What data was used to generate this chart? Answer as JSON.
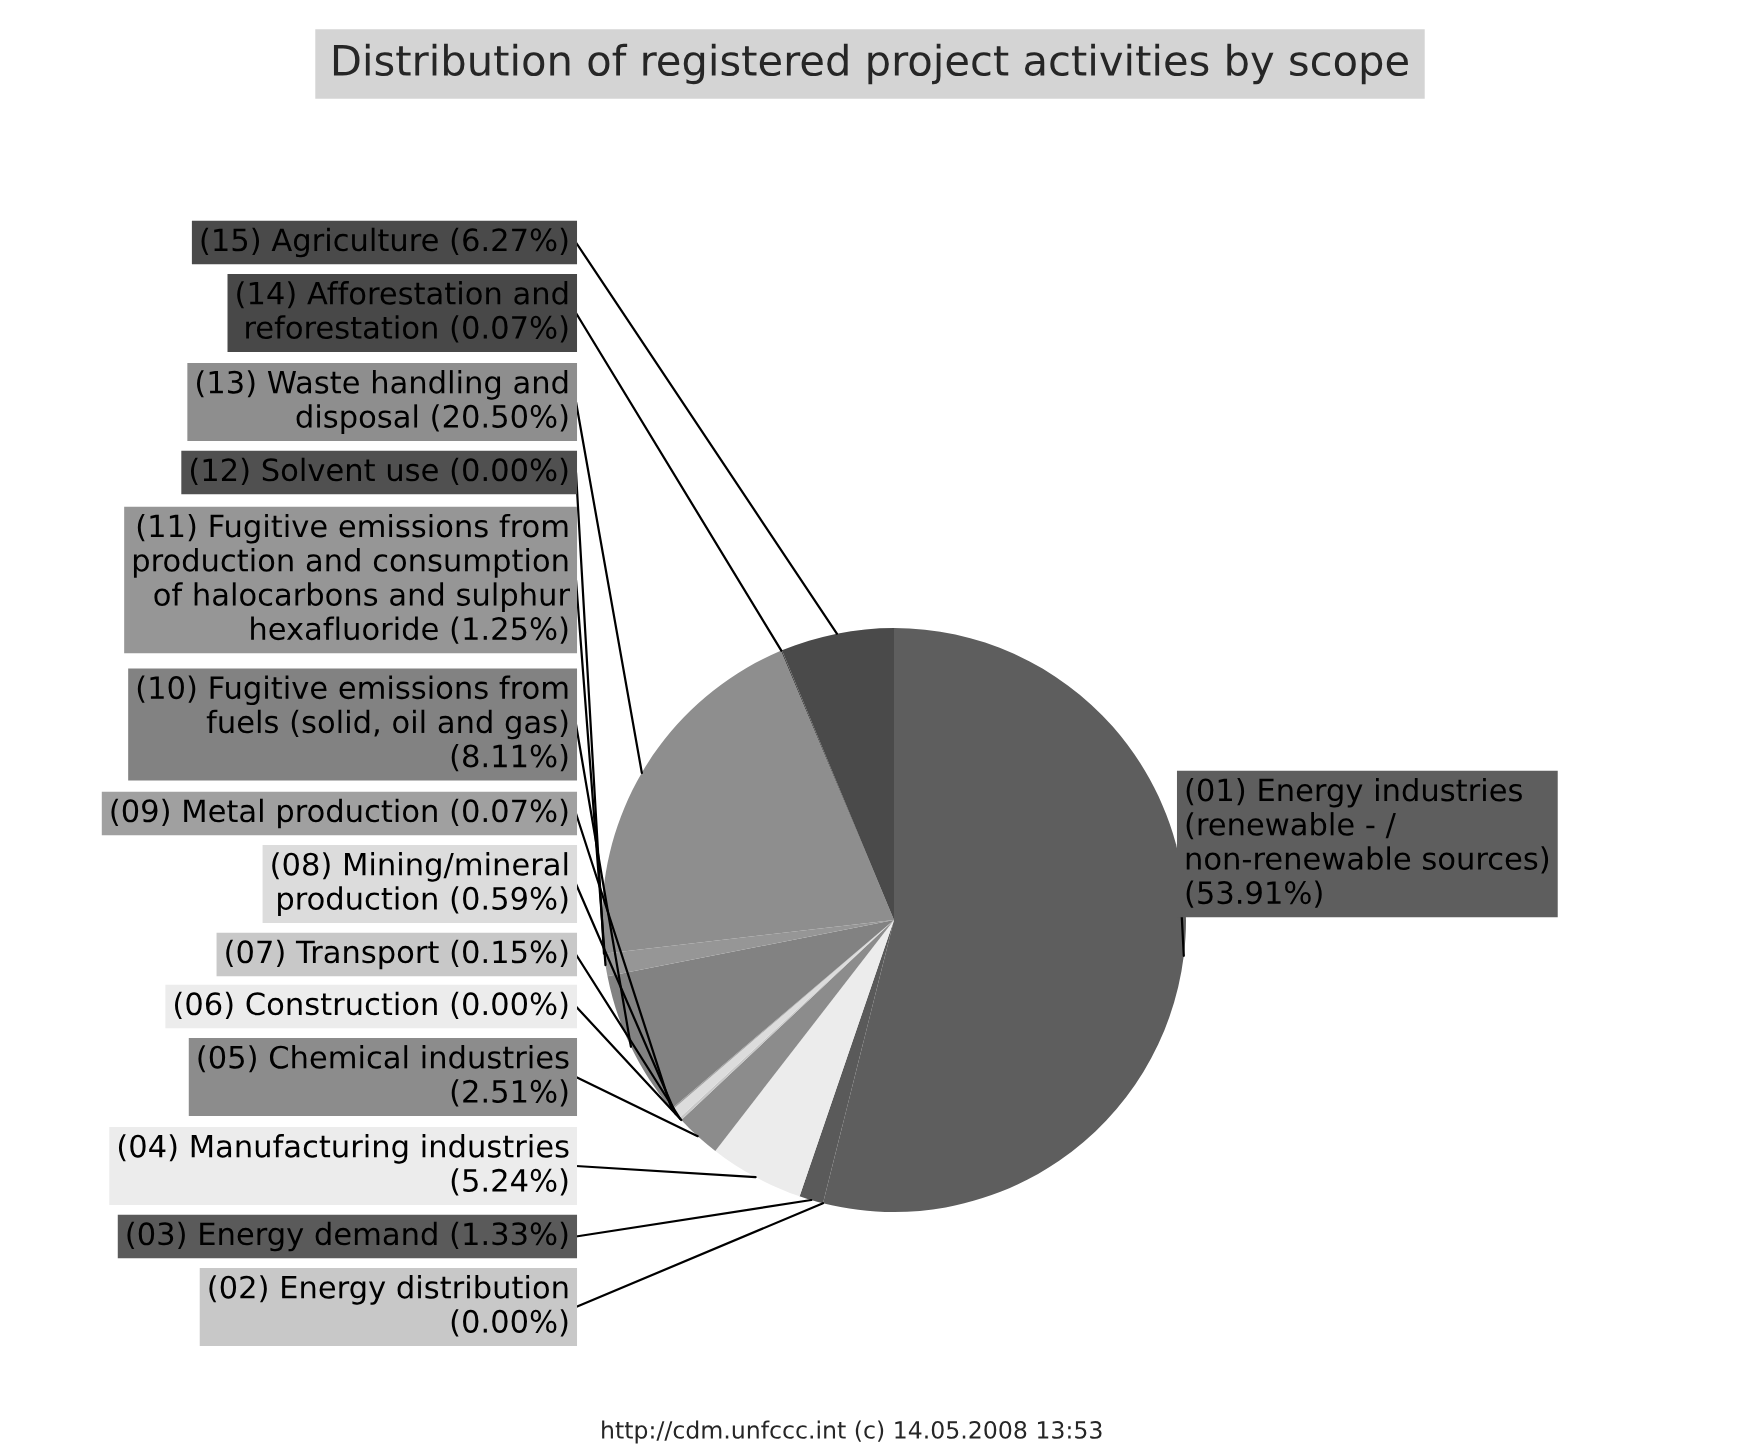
{
  "chart_data": {
    "type": "pie",
    "title": "Distribution of registered project activities by scope",
    "categories": [
      "(01) Energy industries\n(renewable - /\nnon-renewable sources)\n",
      "(02) Energy distribution\n",
      "(03) Energy demand",
      "(04) Manufacturing industries\n",
      "(05) Chemical industries\n",
      "(06) Construction",
      "(07) Transport",
      "(08) Mining/mineral\nproduction",
      "(09) Metal production",
      "(10) Fugitive emissions from\nfuels (solid, oil and gas)\n",
      "(11) Fugitive emissions from\nproduction and consumption\nof halocarbons and sulphur\nhexafluoride",
      "(12) Solvent use",
      "(13) Waste handling and\ndisposal",
      "(14) Afforestation and\nreforestation",
      "(15) Agriculture"
    ],
    "values": [
      53.91,
      0.0,
      1.33,
      5.24,
      2.51,
      0.0,
      0.15,
      0.59,
      0.07,
      8.11,
      1.25,
      0.0,
      20.5,
      0.07,
      6.27
    ],
    "value_labels": [
      "(53.91%)",
      "(0.00%)",
      "(1.33%)",
      "(5.24%)",
      "(2.51%)",
      "(0.00%)",
      "(0.15%)",
      "(0.59%)",
      "(0.07%)",
      "(8.11%)",
      "(1.25%)",
      "(0.00%)",
      "(20.50%)",
      "(0.07%)",
      "(6.27%)"
    ],
    "colors": [
      "#5e5e5e",
      "#c8c8c8",
      "#5a5a5a",
      "#ececec",
      "#8c8c8c",
      "#ececec",
      "#c8c8c8",
      "#dcdcdc",
      "#a0a0a0",
      "#828282",
      "#969696",
      "#505050",
      "#8e8e8e",
      "#484848",
      "#4a4a4a"
    ],
    "annotations": [
      "http://cdm.unfccc.int (c) 14.05.2008 13:53"
    ]
  }
}
